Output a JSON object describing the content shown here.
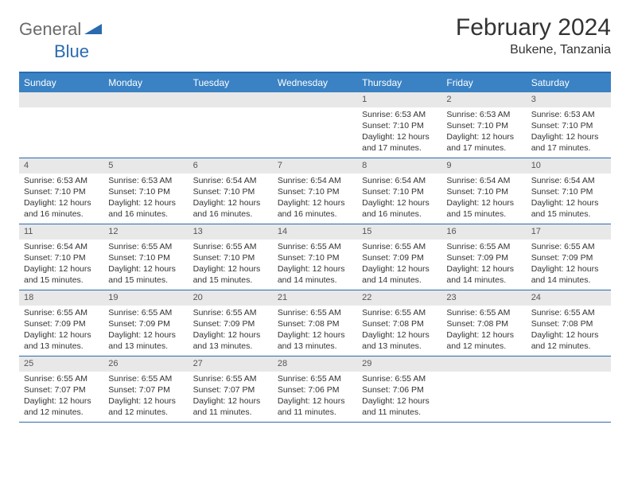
{
  "logo": {
    "part1": "General",
    "part2": "Blue"
  },
  "header": {
    "title": "February 2024",
    "location": "Bukene, Tanzania"
  },
  "colors": {
    "header_bar": "#3a82c4",
    "border": "#2a6bb0",
    "daynum_bg": "#e8e8e8",
    "text": "#333333",
    "logo_gray": "#6b6b6b",
    "logo_blue": "#2a6bb0"
  },
  "dow": [
    "Sunday",
    "Monday",
    "Tuesday",
    "Wednesday",
    "Thursday",
    "Friday",
    "Saturday"
  ],
  "weeks": [
    [
      null,
      null,
      null,
      null,
      {
        "n": "1",
        "sr": "Sunrise: 6:53 AM",
        "ss": "Sunset: 7:10 PM",
        "d1": "Daylight: 12 hours",
        "d2": "and 17 minutes."
      },
      {
        "n": "2",
        "sr": "Sunrise: 6:53 AM",
        "ss": "Sunset: 7:10 PM",
        "d1": "Daylight: 12 hours",
        "d2": "and 17 minutes."
      },
      {
        "n": "3",
        "sr": "Sunrise: 6:53 AM",
        "ss": "Sunset: 7:10 PM",
        "d1": "Daylight: 12 hours",
        "d2": "and 17 minutes."
      }
    ],
    [
      {
        "n": "4",
        "sr": "Sunrise: 6:53 AM",
        "ss": "Sunset: 7:10 PM",
        "d1": "Daylight: 12 hours",
        "d2": "and 16 minutes."
      },
      {
        "n": "5",
        "sr": "Sunrise: 6:53 AM",
        "ss": "Sunset: 7:10 PM",
        "d1": "Daylight: 12 hours",
        "d2": "and 16 minutes."
      },
      {
        "n": "6",
        "sr": "Sunrise: 6:54 AM",
        "ss": "Sunset: 7:10 PM",
        "d1": "Daylight: 12 hours",
        "d2": "and 16 minutes."
      },
      {
        "n": "7",
        "sr": "Sunrise: 6:54 AM",
        "ss": "Sunset: 7:10 PM",
        "d1": "Daylight: 12 hours",
        "d2": "and 16 minutes."
      },
      {
        "n": "8",
        "sr": "Sunrise: 6:54 AM",
        "ss": "Sunset: 7:10 PM",
        "d1": "Daylight: 12 hours",
        "d2": "and 16 minutes."
      },
      {
        "n": "9",
        "sr": "Sunrise: 6:54 AM",
        "ss": "Sunset: 7:10 PM",
        "d1": "Daylight: 12 hours",
        "d2": "and 15 minutes."
      },
      {
        "n": "10",
        "sr": "Sunrise: 6:54 AM",
        "ss": "Sunset: 7:10 PM",
        "d1": "Daylight: 12 hours",
        "d2": "and 15 minutes."
      }
    ],
    [
      {
        "n": "11",
        "sr": "Sunrise: 6:54 AM",
        "ss": "Sunset: 7:10 PM",
        "d1": "Daylight: 12 hours",
        "d2": "and 15 minutes."
      },
      {
        "n": "12",
        "sr": "Sunrise: 6:55 AM",
        "ss": "Sunset: 7:10 PM",
        "d1": "Daylight: 12 hours",
        "d2": "and 15 minutes."
      },
      {
        "n": "13",
        "sr": "Sunrise: 6:55 AM",
        "ss": "Sunset: 7:10 PM",
        "d1": "Daylight: 12 hours",
        "d2": "and 15 minutes."
      },
      {
        "n": "14",
        "sr": "Sunrise: 6:55 AM",
        "ss": "Sunset: 7:10 PM",
        "d1": "Daylight: 12 hours",
        "d2": "and 14 minutes."
      },
      {
        "n": "15",
        "sr": "Sunrise: 6:55 AM",
        "ss": "Sunset: 7:09 PM",
        "d1": "Daylight: 12 hours",
        "d2": "and 14 minutes."
      },
      {
        "n": "16",
        "sr": "Sunrise: 6:55 AM",
        "ss": "Sunset: 7:09 PM",
        "d1": "Daylight: 12 hours",
        "d2": "and 14 minutes."
      },
      {
        "n": "17",
        "sr": "Sunrise: 6:55 AM",
        "ss": "Sunset: 7:09 PM",
        "d1": "Daylight: 12 hours",
        "d2": "and 14 minutes."
      }
    ],
    [
      {
        "n": "18",
        "sr": "Sunrise: 6:55 AM",
        "ss": "Sunset: 7:09 PM",
        "d1": "Daylight: 12 hours",
        "d2": "and 13 minutes."
      },
      {
        "n": "19",
        "sr": "Sunrise: 6:55 AM",
        "ss": "Sunset: 7:09 PM",
        "d1": "Daylight: 12 hours",
        "d2": "and 13 minutes."
      },
      {
        "n": "20",
        "sr": "Sunrise: 6:55 AM",
        "ss": "Sunset: 7:09 PM",
        "d1": "Daylight: 12 hours",
        "d2": "and 13 minutes."
      },
      {
        "n": "21",
        "sr": "Sunrise: 6:55 AM",
        "ss": "Sunset: 7:08 PM",
        "d1": "Daylight: 12 hours",
        "d2": "and 13 minutes."
      },
      {
        "n": "22",
        "sr": "Sunrise: 6:55 AM",
        "ss": "Sunset: 7:08 PM",
        "d1": "Daylight: 12 hours",
        "d2": "and 13 minutes."
      },
      {
        "n": "23",
        "sr": "Sunrise: 6:55 AM",
        "ss": "Sunset: 7:08 PM",
        "d1": "Daylight: 12 hours",
        "d2": "and 12 minutes."
      },
      {
        "n": "24",
        "sr": "Sunrise: 6:55 AM",
        "ss": "Sunset: 7:08 PM",
        "d1": "Daylight: 12 hours",
        "d2": "and 12 minutes."
      }
    ],
    [
      {
        "n": "25",
        "sr": "Sunrise: 6:55 AM",
        "ss": "Sunset: 7:07 PM",
        "d1": "Daylight: 12 hours",
        "d2": "and 12 minutes."
      },
      {
        "n": "26",
        "sr": "Sunrise: 6:55 AM",
        "ss": "Sunset: 7:07 PM",
        "d1": "Daylight: 12 hours",
        "d2": "and 12 minutes."
      },
      {
        "n": "27",
        "sr": "Sunrise: 6:55 AM",
        "ss": "Sunset: 7:07 PM",
        "d1": "Daylight: 12 hours",
        "d2": "and 11 minutes."
      },
      {
        "n": "28",
        "sr": "Sunrise: 6:55 AM",
        "ss": "Sunset: 7:06 PM",
        "d1": "Daylight: 12 hours",
        "d2": "and 11 minutes."
      },
      {
        "n": "29",
        "sr": "Sunrise: 6:55 AM",
        "ss": "Sunset: 7:06 PM",
        "d1": "Daylight: 12 hours",
        "d2": "and 11 minutes."
      },
      null,
      null
    ]
  ]
}
